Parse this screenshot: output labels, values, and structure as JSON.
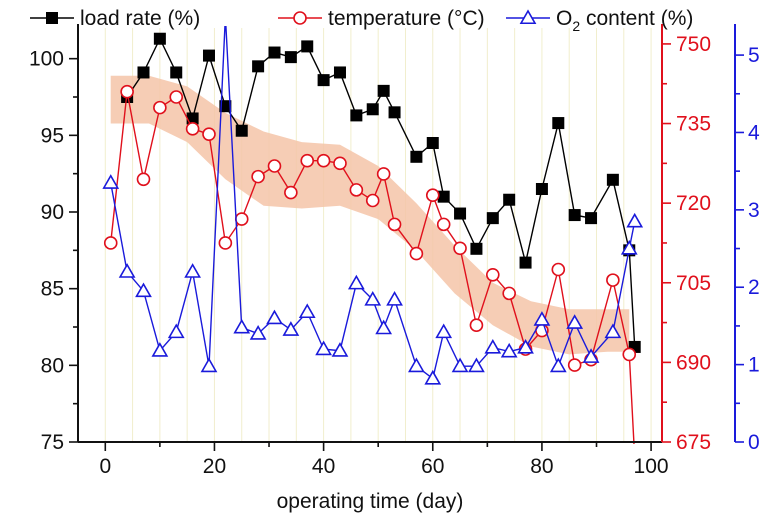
{
  "chart_data": {
    "type": "line",
    "xlabel": "operating time (day)",
    "xlim": [
      -5,
      102
    ],
    "x_ticks": [
      0,
      20,
      40,
      60,
      80,
      100
    ],
    "axes": {
      "left": {
        "range": [
          75,
          102
        ],
        "ticks": [
          75,
          80,
          85,
          90,
          95,
          100
        ],
        "color": "#111111"
      },
      "right_temperature": {
        "range": [
          675,
          753
        ],
        "ticks": [
          675,
          690,
          705,
          720,
          735,
          750
        ],
        "color": "#e0101c"
      },
      "right_o2": {
        "range": [
          0,
          5.35
        ],
        "ticks": [
          0,
          1,
          2,
          3,
          4,
          5
        ],
        "color": "#1a1adb"
      }
    },
    "legend": {
      "position": "top",
      "items": [
        {
          "label": "load rate (%)",
          "series": "load"
        },
        {
          "label": "temperature (°C)",
          "series": "temperature"
        },
        {
          "label_main": "O",
          "label_sub": "2",
          "label_rest": " content (%)",
          "series": "o2"
        }
      ]
    },
    "series": [
      {
        "name": "load rate (%)",
        "key": "load",
        "axis": "left",
        "marker": "square-filled",
        "color": "#000000",
        "x": [
          4,
          7,
          10,
          13,
          16,
          19,
          22,
          25,
          28,
          31,
          34,
          37,
          40,
          43,
          46,
          49,
          51,
          53,
          57,
          60,
          62,
          65,
          68,
          71,
          74,
          77,
          80,
          83,
          86,
          89,
          93,
          96,
          97
        ],
        "y": [
          97.5,
          99.1,
          101.3,
          99.1,
          96.1,
          100.2,
          96.9,
          95.3,
          99.5,
          100.4,
          100.1,
          100.8,
          98.6,
          99.1,
          96.3,
          96.7,
          97.9,
          96.5,
          93.6,
          94.5,
          91.0,
          89.9,
          87.6,
          89.6,
          90.8,
          86.7,
          91.5,
          95.8,
          89.8,
          89.6,
          92.1,
          87.5,
          81.2
        ]
      },
      {
        "name": "temperature (°C)",
        "key": "temperature",
        "axis": "right_temperature",
        "marker": "circle-open",
        "color": "#e0101c",
        "x": [
          1,
          4,
          7,
          10,
          13,
          16,
          19,
          22,
          25,
          28,
          31,
          34,
          37,
          40,
          43,
          46,
          49,
          51,
          53,
          57,
          60,
          62,
          65,
          68,
          71,
          74,
          77,
          80,
          83,
          86,
          89,
          93,
          96,
          97
        ],
        "y": [
          712.5,
          741,
          724.5,
          738,
          740,
          734,
          733,
          712.5,
          717,
          725,
          727,
          722,
          728,
          728,
          727.5,
          722.5,
          720.5,
          725.5,
          716,
          710.5,
          721.5,
          716,
          711.5,
          697,
          706.5,
          703,
          692.5,
          696,
          707.5,
          689.5,
          690.5,
          705.5,
          691.5,
          672
        ]
      },
      {
        "name": "O2 content (%)",
        "key": "o2",
        "axis": "right_o2",
        "marker": "triangle-open",
        "color": "#1a1adb",
        "x": [
          1,
          4,
          7,
          10,
          13,
          16,
          19,
          22,
          25,
          28,
          31,
          34,
          37,
          40,
          43,
          46,
          49,
          51,
          53,
          57,
          60,
          62,
          65,
          68,
          71,
          74,
          77,
          80,
          83,
          86,
          89,
          93,
          96,
          97
        ],
        "y": [
          3.35,
          2.2,
          1.95,
          1.18,
          1.42,
          2.2,
          0.98,
          5.5,
          1.48,
          1.4,
          1.6,
          1.45,
          1.68,
          1.2,
          1.18,
          2.05,
          1.84,
          1.47,
          1.84,
          0.98,
          0.82,
          1.42,
          0.98,
          0.98,
          1.22,
          1.17,
          1.22,
          1.58,
          0.98,
          1.54,
          1.1,
          1.42,
          2.5,
          2.85
        ]
      }
    ],
    "band": {
      "axis": "right_temperature",
      "color": "#f5c4a8",
      "x": [
        1,
        8,
        15,
        22,
        29,
        36,
        43,
        50,
        57,
        64,
        71,
        78,
        85,
        92,
        96
      ],
      "upper": [
        744,
        744,
        742,
        737,
        733.5,
        731.5,
        731,
        727,
        720,
        712,
        705,
        701.5,
        700,
        700,
        700
      ],
      "lower": [
        735,
        735,
        731.5,
        724.5,
        719.5,
        719,
        719.5,
        717,
        711,
        703,
        697,
        693,
        691.5,
        692,
        692
      ]
    }
  }
}
